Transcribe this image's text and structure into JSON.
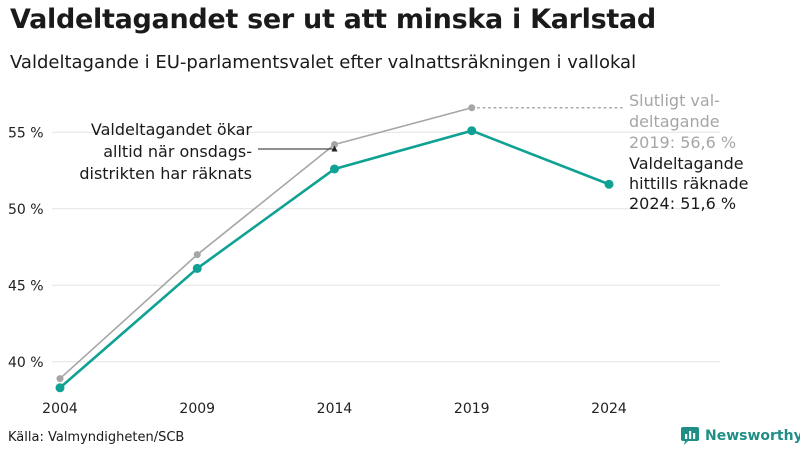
{
  "title": "Valdeltagandet ser ut att minska i Karlstad",
  "subtitle": "Valdeltagande i EU-parlamentsvalet efter valnattsräkningen i vallokal",
  "source": "Källa: Valmyndigheten/SCB",
  "brand": "Newsworthy",
  "colors": {
    "preliminary": "#0fa193",
    "final": "#a6a6a6",
    "grid": "#e3e3e3"
  },
  "chart_data": {
    "type": "line",
    "x": [
      2004,
      2009,
      2014,
      2019,
      2024
    ],
    "ylim": [
      37.5,
      57.5
    ],
    "yticks": [
      40,
      45,
      50,
      55
    ],
    "ytick_labels": [
      "40 %",
      "45 %",
      "50 %",
      "55 %"
    ],
    "xtick_labels": [
      "2004",
      "2009",
      "2014",
      "2019",
      "2024"
    ],
    "grid": true,
    "series": [
      {
        "key": "final",
        "values": [
          38.9,
          47.0,
          54.2,
          56.6,
          null
        ]
      },
      {
        "key": "preliminary",
        "values": [
          38.3,
          46.1,
          52.6,
          55.1,
          51.6
        ]
      }
    ],
    "annotations": {
      "onsdag": [
        "Valdeltagandet ökar",
        "alltid när onsdags-",
        "distrikten har räknats"
      ],
      "final_2019": [
        "Slutligt val-",
        "deltagande",
        "2019: 56,6 %"
      ],
      "current_2024": [
        "Valdeltagande",
        "hittills räknade",
        "2024: 51,6 %"
      ]
    }
  }
}
